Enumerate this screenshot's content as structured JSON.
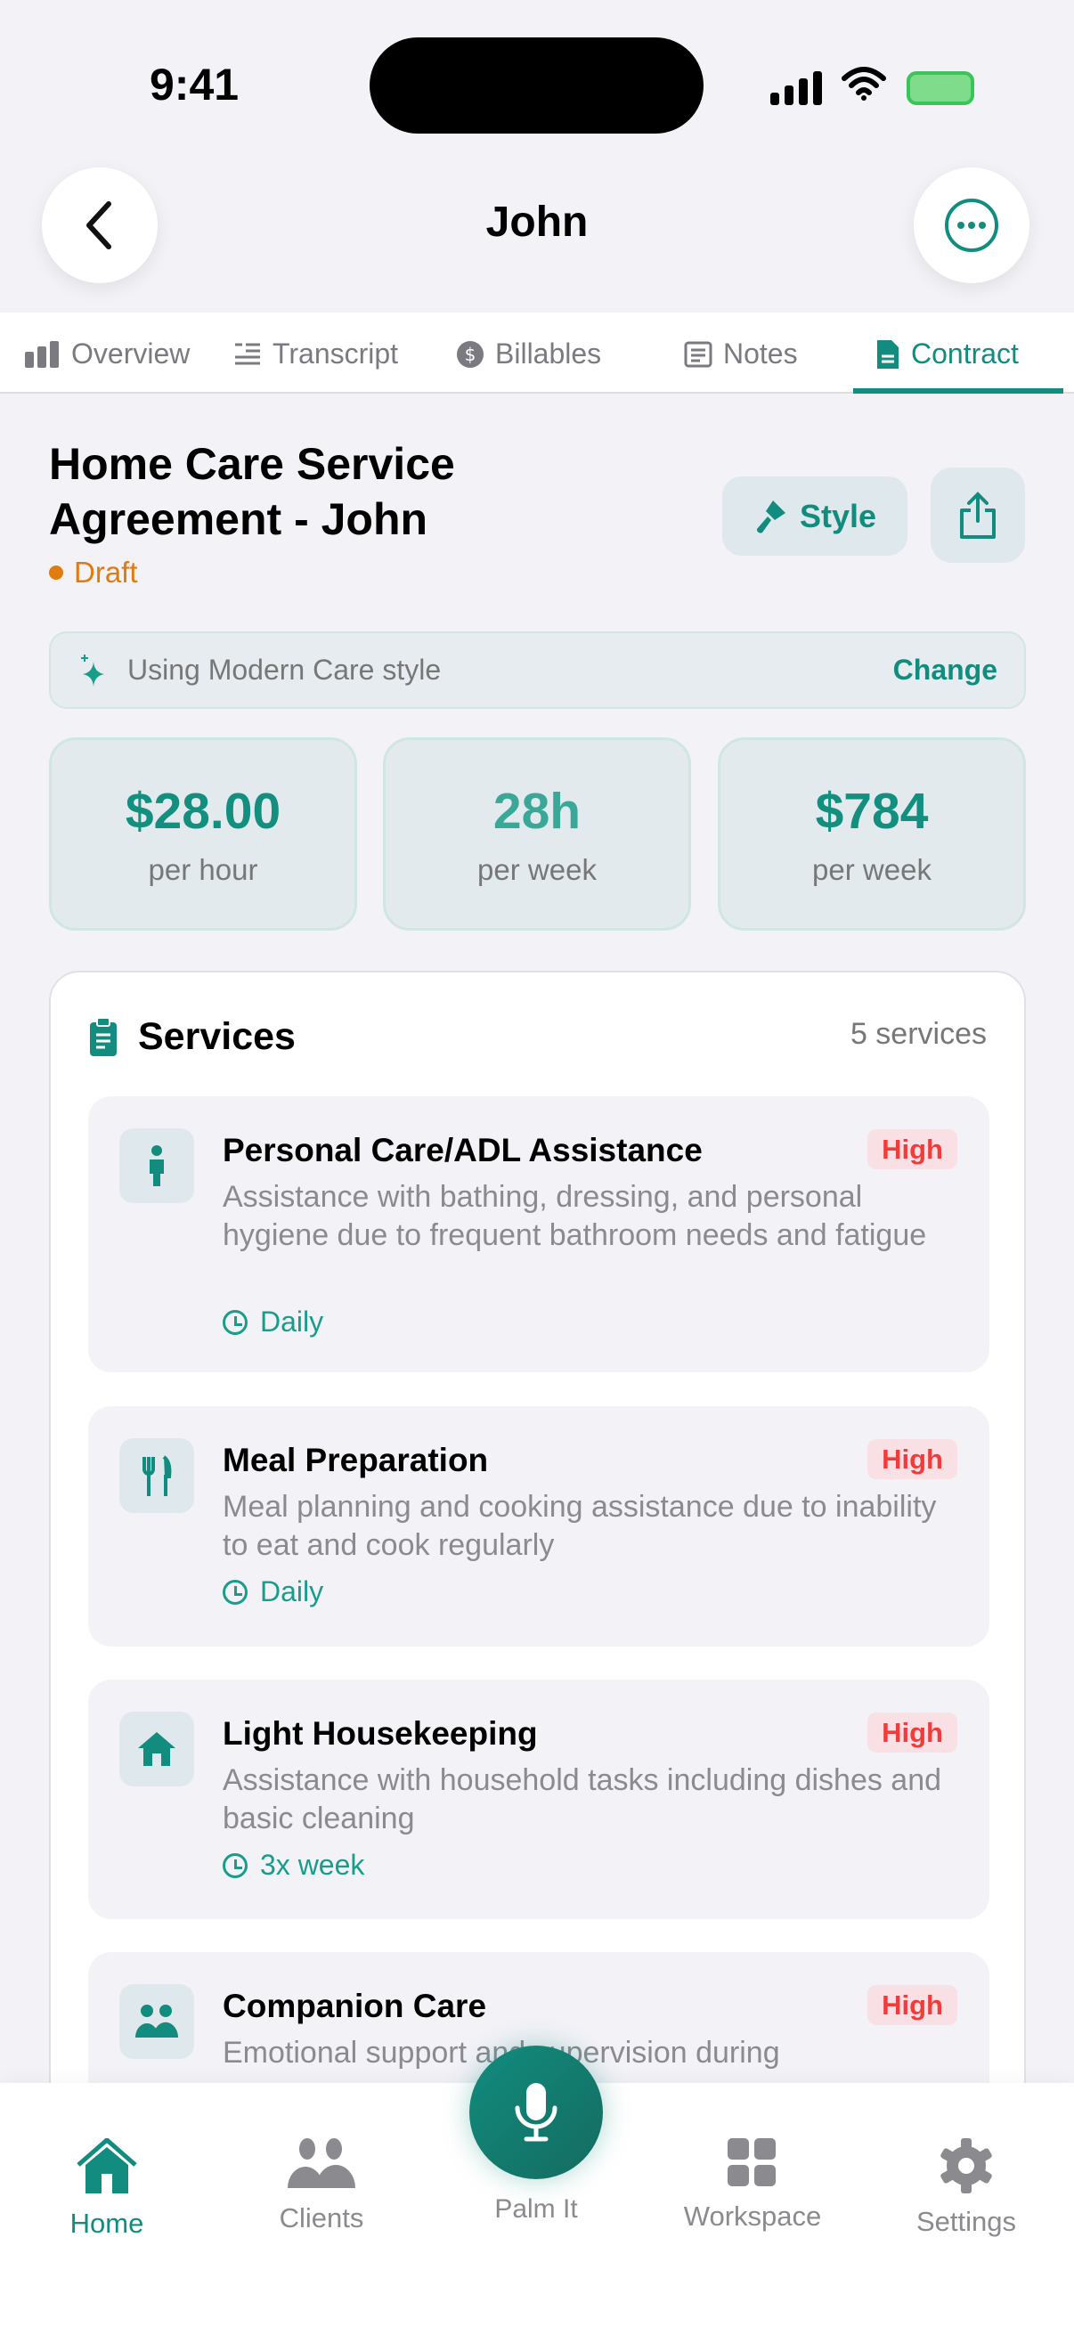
{
  "status_bar": {
    "time": "9:41"
  },
  "header": {
    "title": "John"
  },
  "tabs": [
    {
      "label": "Overview",
      "icon": "bar-chart-icon"
    },
    {
      "label": "Transcript",
      "icon": "quote-lines-icon"
    },
    {
      "label": "Billables",
      "icon": "dollar-circle-icon"
    },
    {
      "label": "Notes",
      "icon": "note-icon"
    },
    {
      "label": "Contract",
      "icon": "document-icon",
      "active": true
    }
  ],
  "contract": {
    "title": "Home Care Service Agreement - John",
    "status": "Draft",
    "status_color": "#e07b10",
    "style_button": "Style",
    "style_banner": "Using Modern Care style",
    "change_label": "Change"
  },
  "stats": [
    {
      "value": "$28.00",
      "label": "per hour"
    },
    {
      "value": "28h",
      "label": "per week"
    },
    {
      "value": "$784",
      "label": "per week"
    }
  ],
  "services": {
    "title": "Services",
    "count": "5 services",
    "items": [
      {
        "title": "Personal Care/ADL Assistance",
        "priority": "High",
        "description": "Assistance with bathing, dressing, and personal hygiene due to frequent bathroom needs and fatigue",
        "frequency": "Daily",
        "icon": "person-icon"
      },
      {
        "title": "Meal Preparation",
        "priority": "High",
        "description": "Meal planning and cooking assistance due to inability to eat and cook regularly",
        "frequency": "Daily",
        "icon": "utensils-icon"
      },
      {
        "title": "Light Housekeeping",
        "priority": "High",
        "description": "Assistance with household tasks including dishes and basic cleaning",
        "frequency": "3x week",
        "icon": "house-icon"
      },
      {
        "title": "Companion Care",
        "priority": "High",
        "description": "Emotional support and supervision during",
        "icon": "people-icon"
      }
    ]
  },
  "bottom_nav": [
    {
      "label": "Home",
      "active": true
    },
    {
      "label": "Clients"
    },
    {
      "label": "Palm It"
    },
    {
      "label": "Workspace"
    },
    {
      "label": "Settings"
    }
  ],
  "colors": {
    "accent": "#128c7e",
    "high": "#f23c3c"
  }
}
